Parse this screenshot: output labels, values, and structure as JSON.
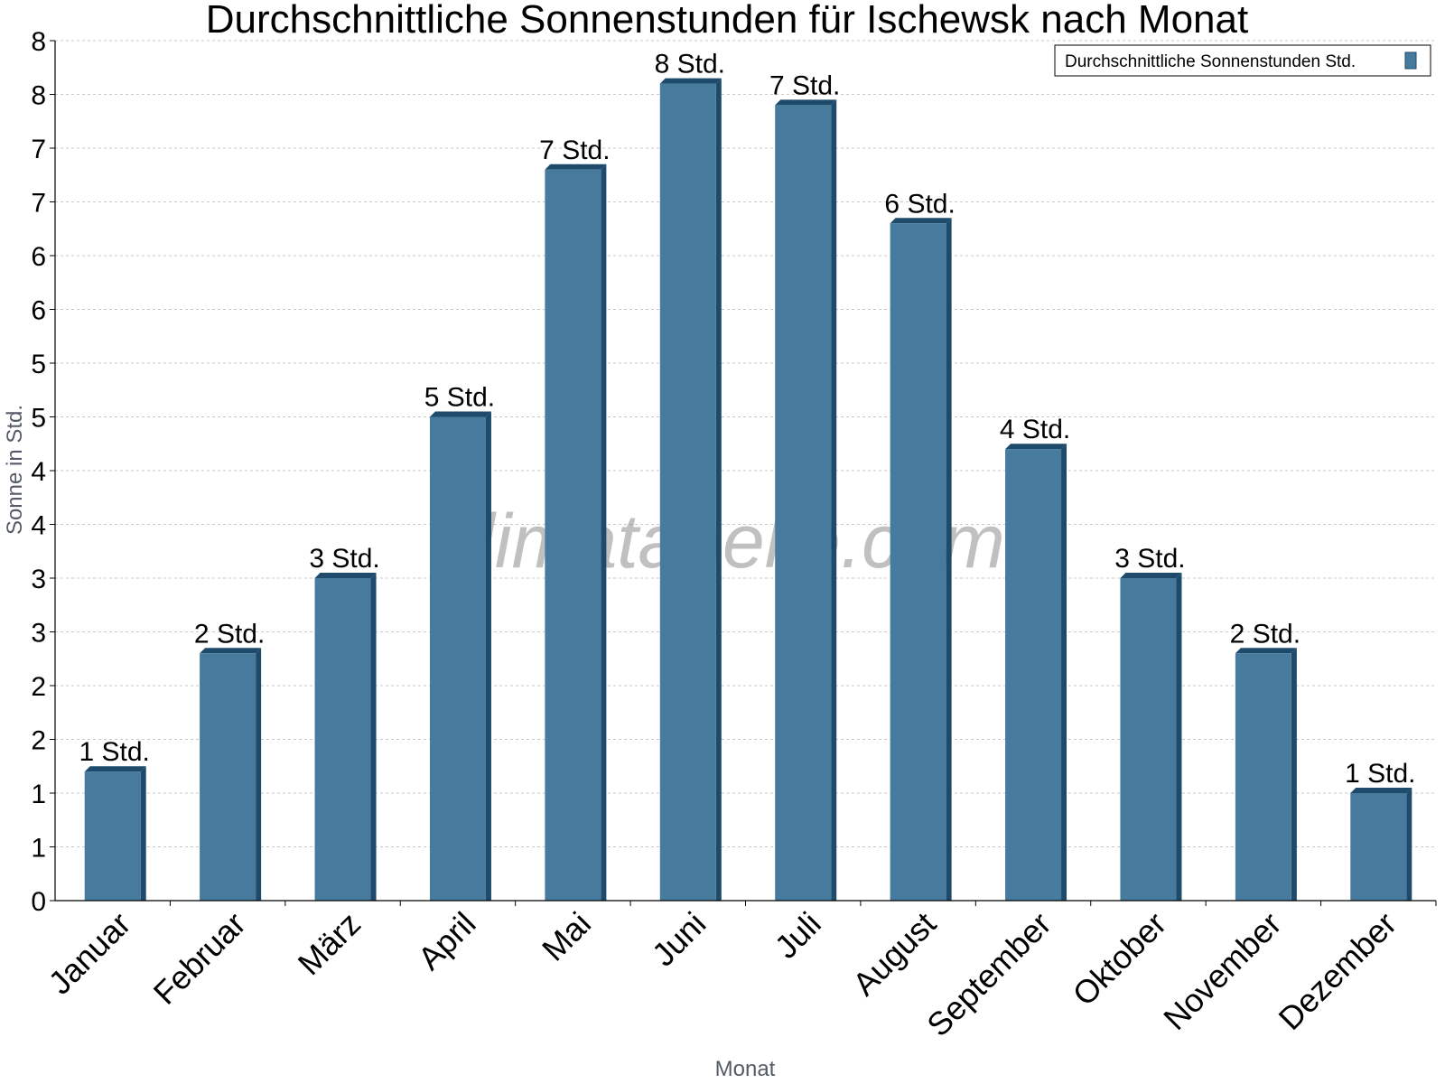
{
  "chart_data": {
    "type": "bar",
    "title": "Durchschnittliche Sonnenstunden für Ischewsk nach Monat",
    "xlabel": "Monat",
    "ylabel": "Sonne in Std.",
    "ylim": [
      0,
      8
    ],
    "y_ticks": [
      "0",
      "1",
      "1",
      "2",
      "2",
      "3",
      "3",
      "4",
      "4",
      "5",
      "5",
      "6",
      "6",
      "7",
      "7",
      "8",
      "8"
    ],
    "grid": true,
    "legend_position": "top-right",
    "categories": [
      "Januar",
      "Februar",
      "März",
      "April",
      "Mai",
      "Juni",
      "Juli",
      "August",
      "September",
      "Oktober",
      "November",
      "Dezember"
    ],
    "series": [
      {
        "name": "Durchschnittliche Sonnenstunden Std.",
        "color": "#467b9e",
        "values": [
          1.2,
          2.3,
          3.0,
          4.5,
          6.8,
          7.6,
          7.4,
          6.3,
          4.2,
          3.0,
          2.3,
          1.0
        ],
        "data_labels": [
          "1 Std.",
          "2 Std.",
          "3 Std.",
          "5 Std.",
          "7 Std.",
          "8 Std.",
          "7 Std.",
          "6 Std.",
          "4 Std.",
          "3 Std.",
          "2 Std.",
          "1 Std."
        ]
      }
    ],
    "watermark": "klimatabelle.com"
  }
}
